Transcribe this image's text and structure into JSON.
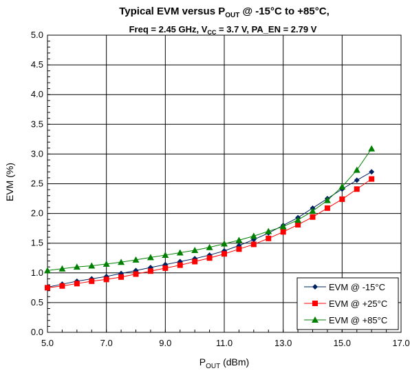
{
  "chart_data": {
    "type": "line",
    "title_line1_main": "Typical EVM versus P",
    "title_line1_sub": "OUT",
    "title_line1_rest": " @ -15°C to +85°C,",
    "title_line2_a": "Freq = 2.45 GHz, V",
    "title_line2_sub": "CC",
    "title_line2_b": " = 3.7 V, PA_EN = 2.79 V",
    "xlabel_main": "P",
    "xlabel_sub": "OUT",
    "xlabel_rest": " (dBm)",
    "ylabel": "EVM (%)",
    "xlim": [
      5,
      17
    ],
    "ylim": [
      0,
      5
    ],
    "x_ticks": [
      "5.0",
      "7.0",
      "9.0",
      "11.0",
      "13.0",
      "15.0",
      "17.0"
    ],
    "y_ticks": [
      "0.0",
      "0.5",
      "1.0",
      "1.5",
      "2.0",
      "2.5",
      "3.0",
      "3.5",
      "4.0",
      "4.5",
      "5.0"
    ],
    "grid": true,
    "legend_position": "bottom-right",
    "x": [
      5,
      5.5,
      6,
      6.5,
      7,
      7.5,
      8,
      8.5,
      9,
      9.5,
      10,
      10.5,
      11,
      11.5,
      12,
      12.5,
      13,
      13.5,
      14,
      14.5,
      15,
      15.5,
      16
    ],
    "series": [
      {
        "name": "EVM @ -15°C",
        "color": "#002060",
        "marker": "diamond",
        "values": [
          0.76,
          0.81,
          0.86,
          0.9,
          0.94,
          0.99,
          1.04,
          1.09,
          1.14,
          1.19,
          1.24,
          1.3,
          1.37,
          1.46,
          1.56,
          1.67,
          1.8,
          1.93,
          2.09,
          2.25,
          2.41,
          2.56,
          2.7
        ]
      },
      {
        "name": "EVM @ +25°C",
        "color": "#ff0000",
        "marker": "square",
        "values": [
          0.75,
          0.78,
          0.82,
          0.86,
          0.89,
          0.93,
          0.98,
          1.03,
          1.08,
          1.13,
          1.19,
          1.25,
          1.32,
          1.4,
          1.48,
          1.58,
          1.69,
          1.81,
          1.94,
          2.09,
          2.24,
          2.41,
          2.58
        ]
      },
      {
        "name": "EVM @ +85°C",
        "color": "#008000",
        "marker": "triangle",
        "values": [
          1.04,
          1.07,
          1.1,
          1.12,
          1.15,
          1.18,
          1.22,
          1.26,
          1.3,
          1.34,
          1.38,
          1.43,
          1.49,
          1.55,
          1.62,
          1.7,
          1.78,
          1.89,
          2.04,
          2.22,
          2.45,
          2.73,
          3.09
        ]
      }
    ]
  }
}
